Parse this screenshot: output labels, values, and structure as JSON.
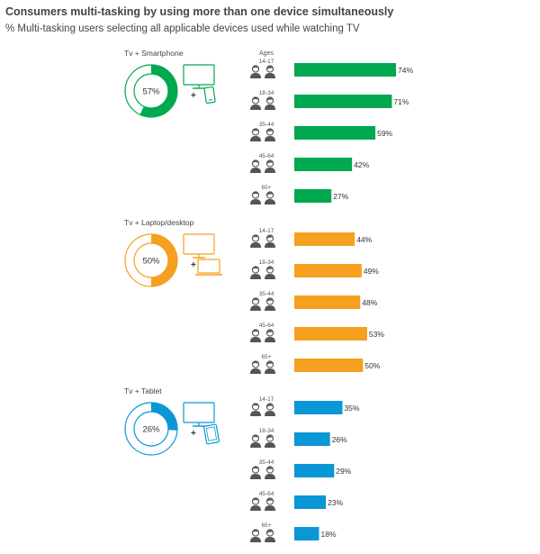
{
  "header": {
    "title": "Consumers multi-tasking by using more than one device simultaneously",
    "subtitle": "% Multi-tasking users selecting all applicable devices used while watching TV"
  },
  "chart_data": {
    "type": "bar",
    "orientation": "horizontal",
    "title": "Consumers multi-tasking by using more than one device simultaneously",
    "subtitle": "% Multi-tasking users selecting all applicable devices used while watching TV",
    "ages_label": "Ages",
    "categories": [
      "14-17",
      "18-34",
      "35-44",
      "45-64",
      "65+"
    ],
    "panels": [
      {
        "name": "Tv + Smartphone",
        "total_label": "57%",
        "total": 57,
        "device_icon": "smartphone-icon",
        "color": "#00a84f",
        "labels": [
          "74%",
          "71%",
          "59%",
          "42%",
          "27%"
        ],
        "values": [
          74,
          71,
          59,
          42,
          27
        ]
      },
      {
        "name": "Tv + Laptop/desktop",
        "total_label": "50%",
        "total": 50,
        "device_icon": "laptop-icon",
        "color": "#f5a01e",
        "labels": [
          "44%",
          "49%",
          "48%",
          "53%",
          "50%"
        ],
        "values": [
          44,
          49,
          48,
          53,
          50
        ]
      },
      {
        "name": "Tv + Tablet",
        "total_label": "26%",
        "total": 26,
        "device_icon": "tablet-icon",
        "color": "#0b96d6",
        "labels": [
          "35%",
          "26%",
          "29%",
          "23%",
          "18%"
        ],
        "values": [
          35,
          26,
          29,
          23,
          18
        ]
      }
    ],
    "xlim": [
      0,
      74
    ]
  }
}
